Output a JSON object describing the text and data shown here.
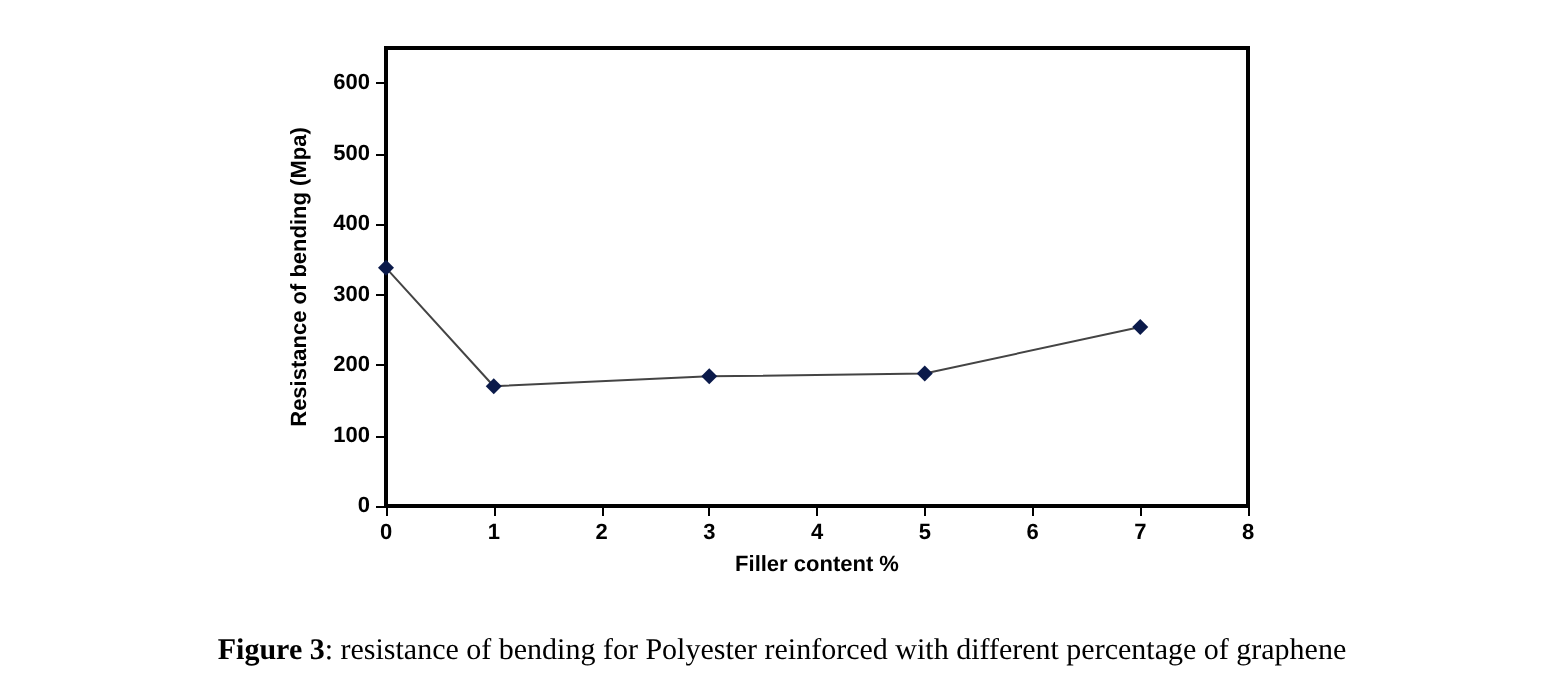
{
  "chart_data": {
    "type": "line",
    "title": "Figure 3: resistance of bending for Polyester reinforced with different percentage of graphene",
    "xlabel": "Filler content %",
    "ylabel": "Resistance of bending (Mpa)",
    "x": [
      0,
      1,
      3,
      5,
      7
    ],
    "series": [
      {
        "color": "#0b1a4a",
        "values": [
          338,
          170,
          184,
          188,
          254
        ]
      }
    ],
    "xlim": [
      0,
      8
    ],
    "xticks": [
      0,
      1,
      2,
      3,
      4,
      5,
      6,
      7,
      8
    ],
    "ylim": [
      0,
      650
    ],
    "yticks": [
      0,
      100,
      200,
      300,
      400,
      500,
      600
    ],
    "grid": false,
    "marker": "diamond",
    "line_style": "solid"
  }
}
